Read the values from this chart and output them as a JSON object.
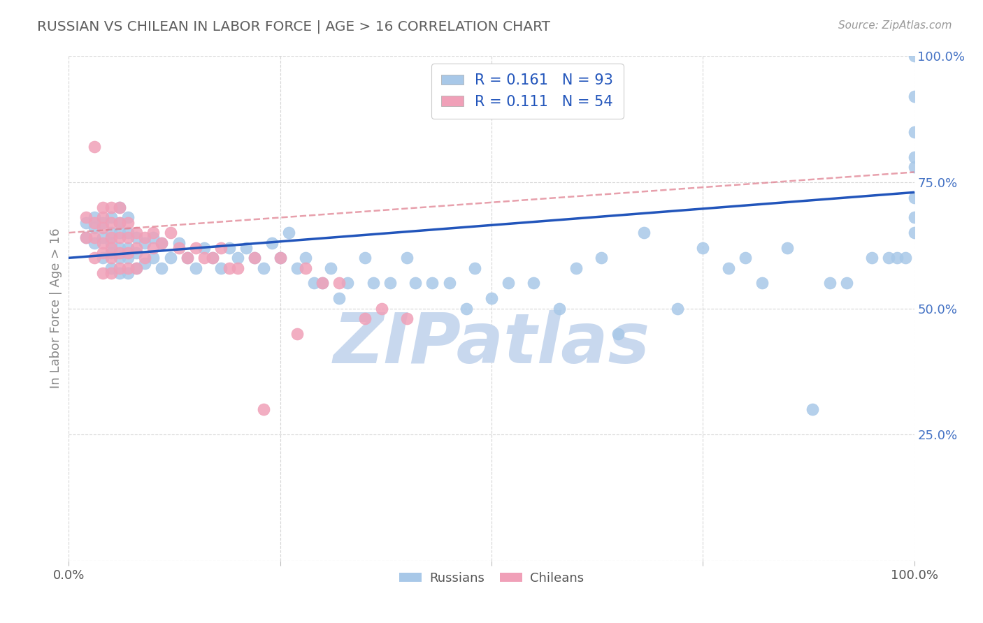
{
  "title": "RUSSIAN VS CHILEAN IN LABOR FORCE | AGE > 16 CORRELATION CHART",
  "source_text": "Source: ZipAtlas.com",
  "ylabel": "In Labor Force | Age > 16",
  "xlim": [
    0.0,
    1.0
  ],
  "ylim": [
    0.0,
    1.0
  ],
  "russian_color": "#A8C8E8",
  "chilean_color": "#F0A0B8",
  "russian_line_color": "#2255BB",
  "chilean_line_color": "#E08090",
  "r_russian": 0.161,
  "n_russian": 93,
  "r_chilean": 0.111,
  "n_chilean": 54,
  "background_color": "#FFFFFF",
  "grid_color": "#CCCCCC",
  "watermark_text": "ZIPatlas",
  "watermark_color": "#C8D8EE",
  "legend_label_russian": "Russians",
  "legend_label_chilean": "Chileans",
  "title_color": "#606060",
  "right_tick_color": "#4472C4",
  "legend_text_color": "#2255BB",
  "bottom_legend_color": "#555555",
  "russian_x": [
    0.02,
    0.02,
    0.03,
    0.03,
    0.03,
    0.04,
    0.04,
    0.04,
    0.05,
    0.05,
    0.05,
    0.05,
    0.05,
    0.06,
    0.06,
    0.06,
    0.06,
    0.06,
    0.06,
    0.07,
    0.07,
    0.07,
    0.07,
    0.07,
    0.08,
    0.08,
    0.08,
    0.09,
    0.09,
    0.1,
    0.1,
    0.11,
    0.11,
    0.12,
    0.13,
    0.14,
    0.15,
    0.16,
    0.17,
    0.18,
    0.19,
    0.2,
    0.21,
    0.22,
    0.23,
    0.24,
    0.25,
    0.26,
    0.27,
    0.28,
    0.29,
    0.3,
    0.31,
    0.32,
    0.33,
    0.35,
    0.36,
    0.38,
    0.4,
    0.41,
    0.43,
    0.45,
    0.47,
    0.48,
    0.5,
    0.52,
    0.55,
    0.58,
    0.6,
    0.63,
    0.65,
    0.68,
    0.72,
    0.75,
    0.78,
    0.8,
    0.82,
    0.85,
    0.88,
    0.9,
    0.92,
    0.95,
    0.97,
    0.98,
    0.99,
    1.0,
    1.0,
    1.0,
    1.0,
    1.0,
    1.0,
    1.0,
    1.0
  ],
  "russian_y": [
    0.64,
    0.67,
    0.63,
    0.66,
    0.68,
    0.6,
    0.64,
    0.67,
    0.58,
    0.61,
    0.63,
    0.65,
    0.68,
    0.57,
    0.6,
    0.62,
    0.65,
    0.67,
    0.7,
    0.57,
    0.6,
    0.62,
    0.65,
    0.68,
    0.58,
    0.61,
    0.64,
    0.59,
    0.63,
    0.6,
    0.64,
    0.58,
    0.63,
    0.6,
    0.63,
    0.6,
    0.58,
    0.62,
    0.6,
    0.58,
    0.62,
    0.6,
    0.62,
    0.6,
    0.58,
    0.63,
    0.6,
    0.65,
    0.58,
    0.6,
    0.55,
    0.55,
    0.58,
    0.52,
    0.55,
    0.6,
    0.55,
    0.55,
    0.6,
    0.55,
    0.55,
    0.55,
    0.5,
    0.58,
    0.52,
    0.55,
    0.55,
    0.5,
    0.58,
    0.6,
    0.45,
    0.65,
    0.5,
    0.62,
    0.58,
    0.6,
    0.55,
    0.62,
    0.3,
    0.55,
    0.55,
    0.6,
    0.6,
    0.6,
    0.6,
    0.65,
    0.68,
    0.72,
    0.78,
    0.8,
    0.85,
    0.92,
    1.0
  ],
  "chilean_x": [
    0.02,
    0.02,
    0.03,
    0.03,
    0.03,
    0.03,
    0.04,
    0.04,
    0.04,
    0.04,
    0.04,
    0.04,
    0.05,
    0.05,
    0.05,
    0.05,
    0.05,
    0.05,
    0.06,
    0.06,
    0.06,
    0.06,
    0.06,
    0.07,
    0.07,
    0.07,
    0.07,
    0.08,
    0.08,
    0.08,
    0.09,
    0.09,
    0.1,
    0.1,
    0.11,
    0.12,
    0.13,
    0.14,
    0.15,
    0.16,
    0.17,
    0.18,
    0.19,
    0.2,
    0.22,
    0.23,
    0.25,
    0.27,
    0.28,
    0.3,
    0.32,
    0.35,
    0.37,
    0.4
  ],
  "chilean_y": [
    0.64,
    0.68,
    0.6,
    0.64,
    0.67,
    0.82,
    0.57,
    0.61,
    0.63,
    0.66,
    0.68,
    0.7,
    0.57,
    0.6,
    0.62,
    0.64,
    0.67,
    0.7,
    0.58,
    0.61,
    0.64,
    0.67,
    0.7,
    0.58,
    0.61,
    0.64,
    0.67,
    0.58,
    0.62,
    0.65,
    0.6,
    0.64,
    0.62,
    0.65,
    0.63,
    0.65,
    0.62,
    0.6,
    0.62,
    0.6,
    0.6,
    0.62,
    0.58,
    0.58,
    0.6,
    0.3,
    0.6,
    0.45,
    0.58,
    0.55,
    0.55,
    0.48,
    0.5,
    0.48
  ],
  "russian_line_y0": 0.6,
  "russian_line_y1": 0.73,
  "chilean_line_y0": 0.65,
  "chilean_line_y1": 0.77
}
